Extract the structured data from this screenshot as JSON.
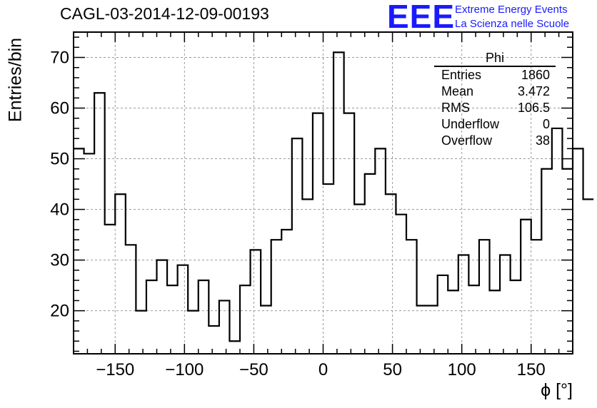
{
  "page_title": "CAGL-03-2014-12-09-00193",
  "logo": {
    "text": "EEE",
    "line1": "Extreme Energy Events",
    "line2": "La Scienza nelle Scuole",
    "color": "#1a1aff"
  },
  "stats": {
    "title": "Phi",
    "rows": [
      {
        "label": "Entries",
        "value": "1860"
      },
      {
        "label": "Mean",
        "value": "3.472"
      },
      {
        "label": "RMS",
        "value": "106.5"
      },
      {
        "label": "Underflow",
        "value": "0"
      },
      {
        "label": "Overflow",
        "value": "38"
      }
    ]
  },
  "chart_data": {
    "type": "histogram",
    "title": "CAGL-03-2014-12-09-00193",
    "xlabel": "ϕ [°]",
    "ylabel": "Entries/bin",
    "xlim": [
      -180,
      180
    ],
    "ylim": [
      11.5,
      75
    ],
    "bin_edges_start": -180,
    "bin_width": 7.5,
    "values": [
      52,
      51,
      63,
      37,
      43,
      33,
      20,
      26,
      30,
      25,
      29,
      20,
      26,
      17,
      22,
      14,
      25,
      32,
      21,
      34,
      36,
      54,
      42,
      59,
      45,
      71,
      59,
      41,
      47,
      52,
      43,
      39,
      34,
      21,
      21,
      27,
      24,
      31,
      25,
      34,
      24,
      31,
      26,
      38,
      34,
      48,
      56,
      48,
      52,
      42
    ],
    "x_ticks": [
      -150,
      -100,
      -50,
      0,
      50,
      100,
      150
    ],
    "x_tick_labels": [
      "−150",
      "−100",
      "−50",
      "0",
      "50",
      "100",
      "150"
    ],
    "y_ticks": [
      20,
      30,
      40,
      50,
      60,
      70
    ],
    "y_tick_labels": [
      "20",
      "30",
      "40",
      "50",
      "60",
      "70"
    ],
    "grid": true,
    "legend": "stats box top-right"
  }
}
